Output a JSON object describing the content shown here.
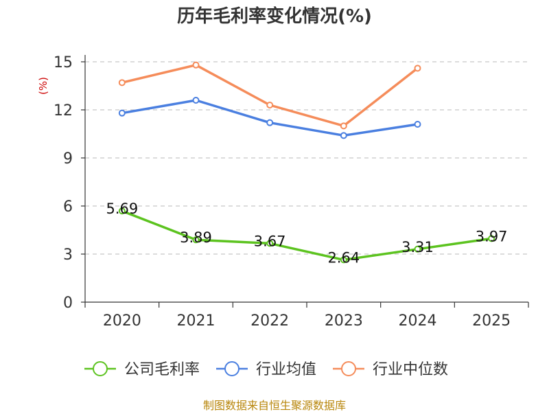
{
  "chart_data": {
    "type": "line",
    "title": "历年毛利率变化情况(%)",
    "ylabel": "(%)",
    "categories": [
      "2020",
      "2021",
      "2022",
      "2023",
      "2024",
      "2025"
    ],
    "ylim": [
      0,
      15
    ],
    "yticks": [
      0,
      3,
      6,
      9,
      12,
      15
    ],
    "grid": true,
    "legend_position": "bottom",
    "series": [
      {
        "name": "公司毛利率",
        "color": "#5cc31f",
        "values": [
          5.69,
          3.89,
          3.67,
          2.64,
          3.31,
          3.97
        ],
        "labels": true
      },
      {
        "name": "行业均值",
        "color": "#4a7fe0",
        "values": [
          11.8,
          12.6,
          11.2,
          10.4,
          11.1,
          null
        ],
        "labels": false
      },
      {
        "name": "行业中位数",
        "color": "#f58c5a",
        "values": [
          13.7,
          14.8,
          12.3,
          11.0,
          14.6,
          null
        ],
        "labels": false
      }
    ]
  },
  "source": "制图数据来自恒生聚源数据库"
}
